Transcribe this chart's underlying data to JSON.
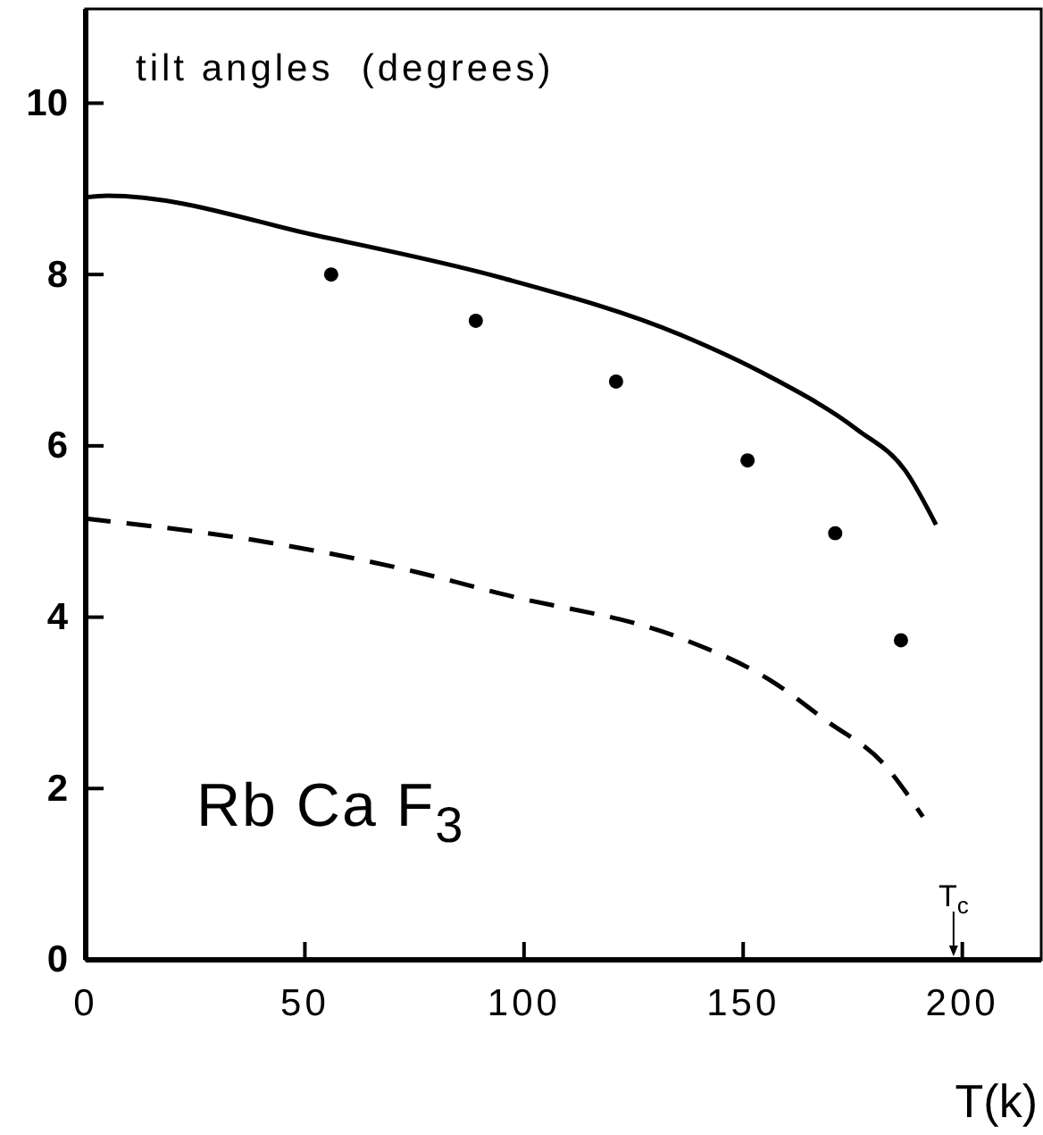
{
  "chart_data": {
    "type": "line",
    "xlabel": "T(k)",
    "ylabel": "tilt angles  (degrees)",
    "xlim": [
      0,
      218
    ],
    "ylim": [
      0,
      11.1
    ],
    "xticks": [
      0,
      50,
      100,
      150,
      200
    ],
    "yticks": [
      0,
      2,
      4,
      6,
      8,
      10
    ],
    "grid": false,
    "series": [
      {
        "color": "#000000",
        "line_style": "solid",
        "marker": "none",
        "x": [
          0,
          5,
          54,
          95,
          136,
          156,
          176,
          187,
          194
        ],
        "values": [
          8.9,
          8.92,
          8.44,
          7.96,
          7.29,
          6.81,
          6.19,
          5.71,
          5.08
        ]
      },
      {
        "color": "#000000",
        "line_style": "dashed",
        "marker": "none",
        "x": [
          0,
          42,
          76,
          95,
          136,
          156,
          169,
          182,
          191
        ],
        "values": [
          5.15,
          4.87,
          4.52,
          4.27,
          3.75,
          3.27,
          2.79,
          2.29,
          1.67
        ]
      },
      {
        "type": "scatter",
        "color": "#000000",
        "marker": "circle",
        "x": [
          56,
          89,
          121,
          151,
          171,
          186
        ],
        "values": [
          8.0,
          7.46,
          6.75,
          5.83,
          4.98,
          3.73
        ]
      }
    ],
    "ref_lines": [
      {
        "axis": "x",
        "value": 198,
        "label": "T$_{c}$"
      }
    ],
    "annotations": [
      "Rb Ca F$_{3}$"
    ]
  }
}
